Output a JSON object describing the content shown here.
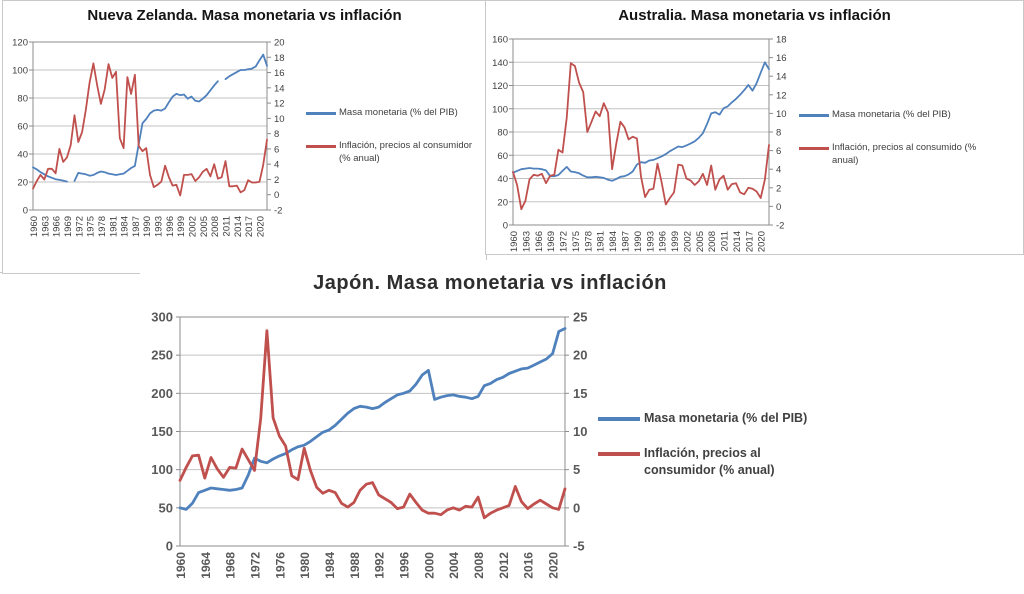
{
  "page": {
    "background": "#FFFFFF"
  },
  "chart_data": [
    {
      "country": "Nueva Zelanda",
      "type": "line",
      "title": "Nueva Zelanda. Masa monetaria vs inflación",
      "grid": true,
      "legend_position": "right",
      "x": {
        "start_year": 1960,
        "end_year": 2022,
        "tick_labels": [
          1960,
          1963,
          1966,
          1969,
          1972,
          1975,
          1978,
          1981,
          1984,
          1987,
          1990,
          1993,
          1996,
          1999,
          2002,
          2005,
          2008,
          2011,
          2014,
          2017,
          2020
        ]
      },
      "left_axis": {
        "min": 0,
        "max": 120,
        "step": 20
      },
      "right_axis": {
        "min": -2,
        "max": 20,
        "step": 2
      },
      "series": [
        {
          "name": "Masa monetaria (% del PIB)",
          "axis": "left",
          "color": "#4F81BD",
          "values": [
            30.5,
            29,
            27,
            25.5,
            24,
            23,
            22,
            21.5,
            21,
            20.3,
            null,
            20.8,
            26.5,
            26,
            25.5,
            24.5,
            25,
            26.5,
            27.5,
            27,
            26,
            25.5,
            25,
            25.5,
            26,
            28,
            30,
            31.5,
            47,
            62,
            65,
            69,
            71,
            71.5,
            71,
            72.5,
            77,
            81,
            83,
            82,
            82.5,
            79.5,
            81,
            78,
            77.5,
            79.5,
            82,
            85.5,
            89,
            92,
            null,
            93.5,
            95.5,
            97,
            98.5,
            100,
            100,
            100.5,
            101,
            102.5,
            107,
            111,
            103
          ]
        },
        {
          "name": "Inflación, precios al consumidor (% anual)",
          "axis": "right",
          "color": "#C0504D",
          "values": [
            0.8,
            1.8,
            2.6,
            2.0,
            3.4,
            3.4,
            2.8,
            6.0,
            4.3,
            4.9,
            6.5,
            10.4,
            6.9,
            8.2,
            11.1,
            14.7,
            17.2,
            14.3,
            11.9,
            13.8,
            17.1,
            15.3,
            16.1,
            7.4,
            6.1,
            15.4,
            13.2,
            15.7,
            6.4,
            5.7,
            6.1,
            2.6,
            1.0,
            1.3,
            1.7,
            3.8,
            2.3,
            1.2,
            1.3,
            -0.1,
            2.6,
            2.6,
            2.7,
            1.8,
            2.3,
            3.0,
            3.4,
            2.4,
            4.0,
            2.1,
            2.3,
            4.4,
            1.1,
            1.1,
            1.2,
            0.3,
            0.6,
            1.9,
            1.6,
            1.6,
            1.7,
            3.9,
            7.2
          ]
        }
      ]
    },
    {
      "country": "Australia",
      "type": "line",
      "title": "Australia. Masa monetaria vs inflación",
      "grid": true,
      "legend_position": "right",
      "x": {
        "start_year": 1960,
        "end_year": 2022,
        "tick_labels": [
          1960,
          1963,
          1966,
          1969,
          1972,
          1975,
          1978,
          1981,
          1984,
          1987,
          1990,
          1993,
          1996,
          1999,
          2002,
          2005,
          2008,
          2011,
          2014,
          2017,
          2020
        ]
      },
      "left_axis": {
        "min": 0,
        "max": 160,
        "step": 20
      },
      "right_axis": {
        "min": -2,
        "max": 18,
        "step": 2
      },
      "series": [
        {
          "name": "Masa monetaria (% del PIB)",
          "axis": "left",
          "color": "#4F81BD",
          "values": [
            45,
            46.5,
            48,
            48.5,
            49,
            48.5,
            48.5,
            48,
            47,
            42,
            42,
            43,
            46.5,
            50,
            46,
            45.5,
            44.5,
            42.5,
            41,
            41,
            41.5,
            41,
            40.5,
            39,
            38,
            39.5,
            41.5,
            42,
            43.5,
            46,
            52,
            54,
            53.5,
            55.5,
            56,
            57.5,
            59,
            61,
            63.5,
            65.5,
            67.5,
            67,
            68.5,
            70,
            72,
            75,
            79,
            87,
            96,
            97,
            95,
            100.5,
            102,
            105.5,
            108.5,
            112,
            116,
            120.5,
            115.5,
            122,
            131,
            140,
            134
          ]
        },
        {
          "name": "Inflación, precios al consumido (% anual)",
          "axis": "right",
          "color": "#C0504D",
          "values": [
            3.7,
            2.3,
            -0.3,
            0.6,
            2.9,
            3.4,
            3.3,
            3.5,
            2.5,
            3.3,
            3.4,
            6.1,
            5.8,
            9.5,
            15.4,
            15.1,
            13.3,
            12.3,
            8.0,
            9.1,
            10.2,
            9.7,
            11.1,
            10.1,
            4.0,
            6.7,
            9.1,
            8.5,
            7.2,
            7.5,
            7.3,
            3.2,
            1.0,
            1.8,
            1.9,
            4.6,
            2.6,
            0.2,
            0.9,
            1.5,
            4.5,
            4.4,
            3.0,
            2.8,
            2.3,
            2.7,
            3.5,
            2.3,
            4.4,
            1.8,
            2.9,
            3.3,
            1.8,
            2.4,
            2.5,
            1.5,
            1.3,
            2.0,
            1.9,
            1.6,
            0.9,
            2.9,
            6.6
          ]
        }
      ]
    },
    {
      "country": "Japón",
      "type": "line",
      "title": "Japón. Masa monetaria vs inflación",
      "grid": true,
      "legend_position": "right",
      "x": {
        "start_year": 1960,
        "end_year": 2022,
        "tick_labels": [
          1960,
          1964,
          1968,
          1972,
          1976,
          1980,
          1984,
          1988,
          1992,
          1996,
          2000,
          2004,
          2008,
          2012,
          2016,
          2020
        ]
      },
      "left_axis": {
        "min": 0,
        "max": 300,
        "step": 50
      },
      "right_axis": {
        "min": -5,
        "max": 25,
        "step": 5
      },
      "series": [
        {
          "name": "Masa monetaria (% del PIB)",
          "axis": "left",
          "color": "#4F81BD",
          "values": [
            50,
            48,
            56,
            70,
            73,
            76,
            75,
            74,
            73,
            74,
            76,
            93,
            115,
            111,
            109,
            114,
            118,
            121,
            126,
            130,
            132,
            137,
            143,
            149,
            152,
            158,
            166,
            174,
            180,
            183,
            182,
            180,
            182,
            188,
            193,
            198,
            200,
            203,
            212,
            224,
            230,
            192,
            195,
            197,
            198,
            196,
            195,
            193,
            196,
            210,
            213,
            218,
            221,
            226,
            229,
            232,
            233,
            237,
            241,
            245,
            252,
            281,
            285
          ]
        },
        {
          "name": "Inflación, precios al consumidor (% anual)",
          "axis": "right",
          "color": "#C0504D",
          "values": [
            3.6,
            5.3,
            6.8,
            6.9,
            3.9,
            6.6,
            5.1,
            4.0,
            5.3,
            5.2,
            7.7,
            6.3,
            4.9,
            11.7,
            23.2,
            11.8,
            9.4,
            8.1,
            4.2,
            3.7,
            7.8,
            4.9,
            2.7,
            1.9,
            2.3,
            2.0,
            0.6,
            0.1,
            0.7,
            2.3,
            3.1,
            3.3,
            1.7,
            1.2,
            0.7,
            -0.1,
            0.1,
            1.8,
            0.7,
            -0.3,
            -0.7,
            -0.7,
            -0.9,
            -0.3,
            0.0,
            -0.3,
            0.2,
            0.1,
            1.4,
            -1.3,
            -0.7,
            -0.3,
            0.0,
            0.3,
            2.8,
            0.8,
            -0.1,
            0.5,
            1.0,
            0.5,
            0.0,
            -0.2,
            2.5
          ]
        }
      ]
    }
  ]
}
